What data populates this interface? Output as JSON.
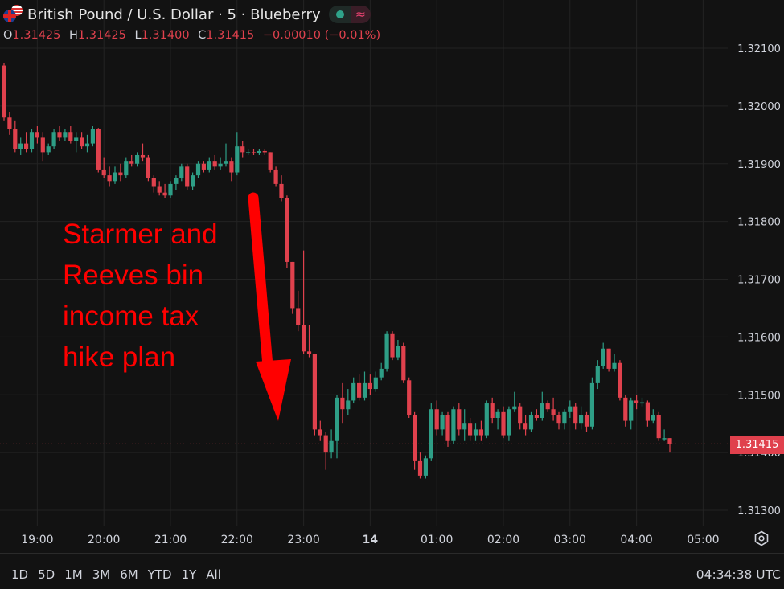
{
  "header": {
    "symbol_title": "British Pound / U.S. Dollar · 5 · Blueberry",
    "status_icon": "market-open-dot-icon",
    "wave_icon": "≈",
    "ohlc": {
      "o_label": "O",
      "o": "1.31425",
      "h_label": "H",
      "h": "1.31425",
      "l_label": "L",
      "l": "1.31400",
      "c_label": "C",
      "c": "1.31415",
      "change": "−0.00010 (−0.01%)"
    }
  },
  "annotation": {
    "lines": [
      "Starmer and",
      "Reeves bin",
      "income tax",
      "hike plan"
    ],
    "color": "#ff0000",
    "arrow": "down-arrow"
  },
  "current_price_label": "1.31415",
  "bottom_bar": {
    "ranges": [
      "1D",
      "5D",
      "1M",
      "3M",
      "6M",
      "YTD",
      "1Y",
      "All"
    ],
    "clock": "04:34:38 UTC"
  },
  "colors": {
    "up": "#2e9e86",
    "down": "#e0414d",
    "background": "#121212",
    "grid": "#232323"
  },
  "chart_data": {
    "type": "candlestick",
    "interval_minutes": 5,
    "ylim": [
      1.3125,
      1.3214
    ],
    "yticks": [
      "1.32100",
      "1.32000",
      "1.31900",
      "1.31800",
      "1.31700",
      "1.31600",
      "1.31500",
      "1.31400",
      "1.31300"
    ],
    "xticks": [
      "19:00",
      "20:00",
      "21:00",
      "22:00",
      "23:00",
      "14",
      "01:00",
      "02:00",
      "03:00",
      "04:00",
      "05:00"
    ],
    "first_candle_time": "18:30",
    "grid": true,
    "candles_ohlc": [
      [
        1.3207,
        1.32075,
        1.31975,
        1.3198
      ],
      [
        1.3198,
        1.3199,
        1.3195,
        1.3196
      ],
      [
        1.3196,
        1.31975,
        1.3192,
        1.31925
      ],
      [
        1.31925,
        1.31945,
        1.31915,
        1.31935
      ],
      [
        1.31935,
        1.31955,
        1.3192,
        1.31925
      ],
      [
        1.31925,
        1.3196,
        1.3192,
        1.31955
      ],
      [
        1.31955,
        1.31965,
        1.31935,
        1.31945
      ],
      [
        1.31945,
        1.31955,
        1.31905,
        1.3192
      ],
      [
        1.3192,
        1.31935,
        1.31915,
        1.3193
      ],
      [
        1.3193,
        1.3196,
        1.31925,
        1.31955
      ],
      [
        1.31955,
        1.31965,
        1.3194,
        1.31945
      ],
      [
        1.31945,
        1.3196,
        1.3194,
        1.31955
      ],
      [
        1.31955,
        1.31965,
        1.31935,
        1.3194
      ],
      [
        1.3194,
        1.31955,
        1.3192,
        1.31945
      ],
      [
        1.31945,
        1.31955,
        1.31925,
        1.3193
      ],
      [
        1.3193,
        1.3195,
        1.3192,
        1.31935
      ],
      [
        1.31935,
        1.31965,
        1.3193,
        1.3196
      ],
      [
        1.3196,
        1.31962,
        1.31885,
        1.3189
      ],
      [
        1.3189,
        1.3191,
        1.31875,
        1.3188
      ],
      [
        1.3188,
        1.31895,
        1.3186,
        1.3187
      ],
      [
        1.3187,
        1.31895,
        1.31865,
        1.31885
      ],
      [
        1.31885,
        1.319,
        1.3187,
        1.3188
      ],
      [
        1.3188,
        1.3191,
        1.31875,
        1.31905
      ],
      [
        1.31905,
        1.31915,
        1.31895,
        1.319
      ],
      [
        1.319,
        1.3192,
        1.31895,
        1.31915
      ],
      [
        1.31915,
        1.31935,
        1.31905,
        1.3191
      ],
      [
        1.3191,
        1.31915,
        1.3187,
        1.31875
      ],
      [
        1.31875,
        1.3188,
        1.3185,
        1.3186
      ],
      [
        1.3186,
        1.3187,
        1.31845,
        1.3185
      ],
      [
        1.3185,
        1.31865,
        1.3184,
        1.31845
      ],
      [
        1.31845,
        1.3187,
        1.3184,
        1.31865
      ],
      [
        1.31865,
        1.3188,
        1.31855,
        1.31875
      ],
      [
        1.31875,
        1.319,
        1.3187,
        1.31895
      ],
      [
        1.31895,
        1.319,
        1.31855,
        1.3186
      ],
      [
        1.3186,
        1.31885,
        1.31855,
        1.3188
      ],
      [
        1.3188,
        1.31905,
        1.31875,
        1.319
      ],
      [
        1.319,
        1.31905,
        1.31885,
        1.3189
      ],
      [
        1.3189,
        1.3191,
        1.31885,
        1.31905
      ],
      [
        1.31905,
        1.31915,
        1.3189,
        1.31895
      ],
      [
        1.31895,
        1.3191,
        1.3189,
        1.319
      ],
      [
        1.319,
        1.31935,
        1.31895,
        1.31905
      ],
      [
        1.31905,
        1.3191,
        1.3187,
        1.31885
      ],
      [
        1.31885,
        1.31955,
        1.3188,
        1.3193
      ],
      [
        1.3193,
        1.3194,
        1.3191,
        1.3192
      ],
      [
        1.3192,
        1.31925,
        1.31915,
        1.3192
      ],
      [
        1.3192,
        1.31925,
        1.31915,
        1.31918
      ],
      [
        1.31918,
        1.31925,
        1.31915,
        1.31922
      ],
      [
        1.31922,
        1.31925,
        1.31915,
        1.3192
      ],
      [
        1.3192,
        1.3192,
        1.31885,
        1.3189
      ],
      [
        1.3189,
        1.31895,
        1.3186,
        1.31865
      ],
      [
        1.31865,
        1.3188,
        1.31835,
        1.3184
      ],
      [
        1.3184,
        1.31845,
        1.3172,
        1.3173
      ],
      [
        1.3173,
        1.3173,
        1.3164,
        1.3165
      ],
      [
        1.3165,
        1.3168,
        1.3161,
        1.3162
      ],
      [
        1.3162,
        1.3175,
        1.3157,
        1.31575
      ],
      [
        1.31575,
        1.3162,
        1.31565,
        1.3157
      ],
      [
        1.3157,
        1.3157,
        1.3143,
        1.3144
      ],
      [
        1.3144,
        1.31455,
        1.3142,
        1.3143
      ],
      [
        1.3143,
        1.31435,
        1.3137,
        1.314
      ],
      [
        1.314,
        1.3144,
        1.3139,
        1.3142
      ],
      [
        1.3142,
        1.315,
        1.3139,
        1.31495
      ],
      [
        1.31495,
        1.3152,
        1.3145,
        1.31475
      ],
      [
        1.31475,
        1.3151,
        1.31465,
        1.3149
      ],
      [
        1.3149,
        1.3153,
        1.31485,
        1.3152
      ],
      [
        1.3152,
        1.31535,
        1.3149,
        1.31495
      ],
      [
        1.31495,
        1.3154,
        1.3149,
        1.3152
      ],
      [
        1.3152,
        1.31535,
        1.315,
        1.3151
      ],
      [
        1.3151,
        1.3154,
        1.31505,
        1.3153
      ],
      [
        1.3153,
        1.31555,
        1.31525,
        1.31545
      ],
      [
        1.31545,
        1.3161,
        1.3154,
        1.31605
      ],
      [
        1.31605,
        1.3161,
        1.3156,
        1.31565
      ],
      [
        1.31565,
        1.31595,
        1.3156,
        1.31585
      ],
      [
        1.31585,
        1.3159,
        1.3152,
        1.31525
      ],
      [
        1.31525,
        1.3153,
        1.3146,
        1.31465
      ],
      [
        1.31465,
        1.3147,
        1.3137,
        1.31385
      ],
      [
        1.31385,
        1.314,
        1.31355,
        1.3136
      ],
      [
        1.3136,
        1.31395,
        1.31355,
        1.3139
      ],
      [
        1.3139,
        1.31485,
        1.31385,
        1.31475
      ],
      [
        1.31475,
        1.3149,
        1.3143,
        1.3144
      ],
      [
        1.3144,
        1.3147,
        1.3143,
        1.31465
      ],
      [
        1.31465,
        1.3147,
        1.3141,
        1.3142
      ],
      [
        1.3142,
        1.3148,
        1.31415,
        1.31475
      ],
      [
        1.31475,
        1.31485,
        1.3143,
        1.3144
      ],
      [
        1.3144,
        1.31475,
        1.3142,
        1.3145
      ],
      [
        1.3145,
        1.3146,
        1.3142,
        1.3143
      ],
      [
        1.3143,
        1.3145,
        1.3142,
        1.3144
      ],
      [
        1.3144,
        1.31455,
        1.3142,
        1.3143
      ],
      [
        1.3143,
        1.3149,
        1.31425,
        1.31485
      ],
      [
        1.31485,
        1.31495,
        1.3145,
        1.3146
      ],
      [
        1.3146,
        1.31475,
        1.3144,
        1.3147
      ],
      [
        1.3147,
        1.3148,
        1.31425,
        1.3143
      ],
      [
        1.3143,
        1.3148,
        1.3142,
        1.31475
      ],
      [
        1.31475,
        1.31505,
        1.3147,
        1.3148
      ],
      [
        1.3148,
        1.31485,
        1.3144,
        1.3145
      ],
      [
        1.3145,
        1.31465,
        1.3143,
        1.3144
      ],
      [
        1.3144,
        1.3147,
        1.31435,
        1.31465
      ],
      [
        1.31465,
        1.31475,
        1.31455,
        1.3146
      ],
      [
        1.3146,
        1.31505,
        1.31455,
        1.31485
      ],
      [
        1.31485,
        1.3149,
        1.3147,
        1.31475
      ],
      [
        1.31475,
        1.31495,
        1.31455,
        1.31465
      ],
      [
        1.31465,
        1.3147,
        1.3144,
        1.3145
      ],
      [
        1.3145,
        1.31475,
        1.3144,
        1.3147
      ],
      [
        1.3147,
        1.3149,
        1.3146,
        1.3148
      ],
      [
        1.3148,
        1.31485,
        1.3144,
        1.3145
      ],
      [
        1.3145,
        1.3148,
        1.3144,
        1.31465
      ],
      [
        1.31465,
        1.3147,
        1.31435,
        1.31445
      ],
      [
        1.31445,
        1.3153,
        1.3144,
        1.3152
      ],
      [
        1.3152,
        1.3156,
        1.3151,
        1.3155
      ],
      [
        1.3155,
        1.3159,
        1.31545,
        1.3158
      ],
      [
        1.3158,
        1.3158,
        1.3154,
        1.31545
      ],
      [
        1.31545,
        1.3157,
        1.3154,
        1.31555
      ],
      [
        1.31555,
        1.3156,
        1.3149,
        1.31495
      ],
      [
        1.31495,
        1.315,
        1.31445,
        1.31455
      ],
      [
        1.31455,
        1.31495,
        1.3144,
        1.3149
      ],
      [
        1.3149,
        1.315,
        1.31475,
        1.31485
      ],
      [
        1.31485,
        1.31495,
        1.3148,
        1.31487
      ],
      [
        1.31487,
        1.3149,
        1.31445,
        1.31455
      ],
      [
        1.31455,
        1.31475,
        1.3145,
        1.31465
      ],
      [
        1.31465,
        1.3147,
        1.3142,
        1.31425
      ],
      [
        1.31425,
        1.3144,
        1.3142,
        1.31425
      ],
      [
        1.31425,
        1.31425,
        1.314,
        1.31415
      ]
    ],
    "current_price": 1.31415
  }
}
